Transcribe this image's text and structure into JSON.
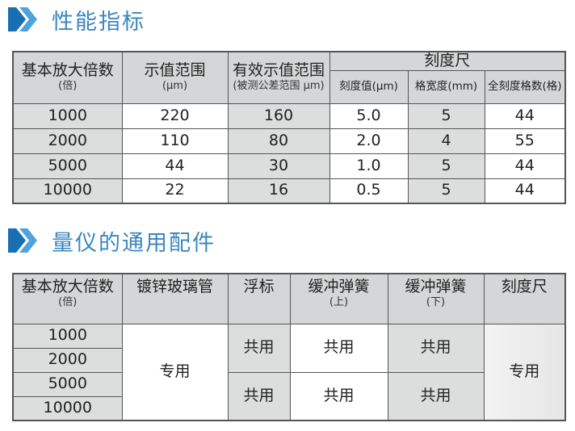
{
  "section1": {
    "title": "性能指标",
    "icon": "double-chevron-right-icon",
    "accent": "#3a86bf"
  },
  "table1": {
    "headers": {
      "magnification": "基本放大倍数",
      "magnification_unit": "(倍)",
      "range": "示值范围",
      "range_unit": "(μm)",
      "effective": "有效示值范围",
      "effective_unit": "(被测公差范围 μm)",
      "scale": "刻度尺",
      "scale_value": "刻度值(μm)",
      "grid_width": "格宽度(mm)",
      "total_grids": "全刻度格数(格)"
    },
    "rows": [
      [
        "1000",
        "220",
        "160",
        "5.0",
        "5",
        "44"
      ],
      [
        "2000",
        "110",
        "80",
        "2.0",
        "4",
        "55"
      ],
      [
        "5000",
        "44",
        "30",
        "1.0",
        "5",
        "44"
      ],
      [
        "10000",
        "22",
        "16",
        "0.5",
        "5",
        "44"
      ]
    ]
  },
  "section2": {
    "title": "量仪的通用配件",
    "icon": "double-chevron-right-icon"
  },
  "table2": {
    "headers": {
      "magnification": "基本放大倍数",
      "magnification_unit": "(倍)",
      "tube": "镀锌玻璃管",
      "float": "浮标",
      "spring_upper": "缓冲弹簧",
      "spring_upper_unit": "(上)",
      "spring_lower": "缓冲弹簧",
      "spring_lower_unit": "(下)",
      "scale": "刻度尺"
    },
    "magnifications": [
      "1000",
      "2000",
      "5000",
      "10000"
    ],
    "tube": "专用",
    "float": [
      "共用",
      "共用"
    ],
    "spring_upper": [
      "共用",
      "共用"
    ],
    "spring_lower": [
      "共用",
      "共用"
    ],
    "scale": "专用"
  }
}
